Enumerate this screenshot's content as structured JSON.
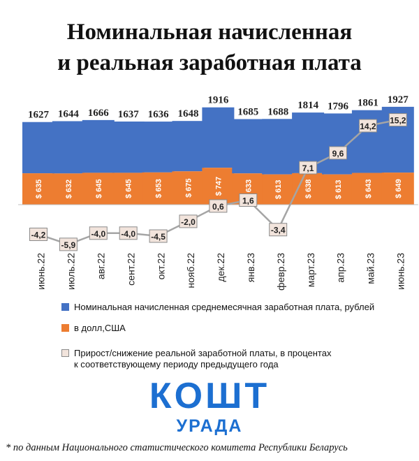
{
  "title_line1": "Номинальная начисленная",
  "title_line2": "и реальная заработная плата",
  "chart_data": {
    "type": "bar",
    "categories": [
      "июнь.22",
      "июль.22",
      "авг.22",
      "сент.22",
      "окт.22",
      "нояб.22",
      "дек.22",
      "янв.23",
      "февр.23",
      "март.23",
      "апр.23",
      "май.23",
      "июнь.23"
    ],
    "series": [
      {
        "name": "Номинальная начисленная среднемесячная заработная плата, рублей",
        "values": [
          1627,
          1644,
          1666,
          1637,
          1636,
          1648,
          1916,
          1685,
          1688,
          1814,
          1796,
          1861,
          1927
        ]
      },
      {
        "name": "в долл,США",
        "values": [
          635,
          632,
          645,
          645,
          653,
          675,
          747,
          633,
          613,
          638,
          613,
          643,
          649
        ],
        "labels": [
          "$ 635",
          "$ 632",
          "$ 645",
          "$ 645",
          "$ 653",
          "$ 675",
          "$ 747",
          "$ 633",
          "$ 613",
          "$ 638",
          "$ 613",
          "$ 643",
          "$ 649"
        ]
      },
      {
        "name": "Прирост/снижение реальной заработной платы, в процентах к соответствующему периоду предыдущего года",
        "values": [
          -4.2,
          -5.9,
          -4.0,
          -4.0,
          -4.5,
          -2.0,
          0.6,
          1.6,
          -3.4,
          7.1,
          9.6,
          14.2,
          15.2
        ],
        "labels": [
          "-4,2",
          "-5,9",
          "-4,0",
          "-4,0",
          "-4,5",
          "-2,0",
          "0,6",
          "1,6",
          "-3,4",
          "7,1",
          "9,6",
          "14,2",
          "15,2"
        ]
      }
    ],
    "colors": {
      "nominal": "#4472c4",
      "usd": "#ed7d31",
      "line": "#a5a5a5",
      "box_fill": "#f2e4dc"
    }
  },
  "legend": {
    "nominal": "Номинальная начисленная среднемесячная заработная плата, рублей",
    "usd": "в долл,США",
    "real_line1": "Прирост/снижение реальной заработной платы, в процентах",
    "real_line2": "к соответствующему периоду предыдущего года"
  },
  "logo": {
    "line1": "КОШТ",
    "line2": "УРАДА"
  },
  "footnote": "* по данным Национального статистического комитета Республики Беларусь"
}
